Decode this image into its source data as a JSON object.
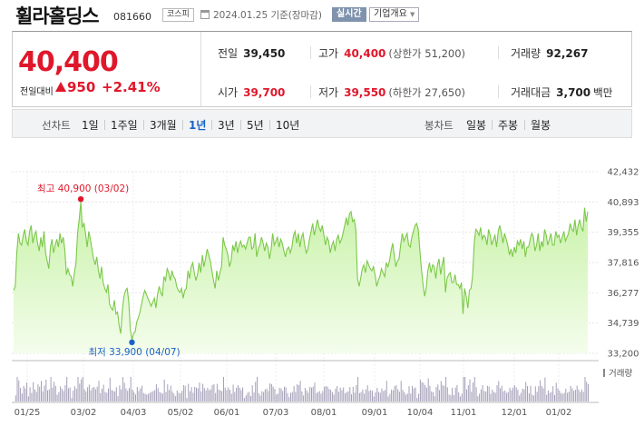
{
  "header": {
    "name": "휠라홀딩스",
    "code": "081660",
    "market": "코스피",
    "date_text": "2024.01.25  기준(장마감)",
    "realtime_label": "실시간",
    "company_label": "기업개요",
    "caret": "▼"
  },
  "price": {
    "current": "40,400",
    "prev_label": "전일대비",
    "diff": "950",
    "rate": "+2.41%"
  },
  "stats": {
    "prev": {
      "label": "전일",
      "value": "39,450"
    },
    "high": {
      "label": "고가",
      "value": "40,400",
      "sub": "(상한가 51,200)"
    },
    "volume": {
      "label": "거래량",
      "value": "92,267"
    },
    "open": {
      "label": "시가",
      "value": "39,700"
    },
    "low": {
      "label": "저가",
      "value": "39,550",
      "sub": "(하한가 27,650)"
    },
    "amount": {
      "label": "거래대금",
      "value": "3,700",
      "unit": "백만"
    }
  },
  "periods": {
    "title": "선차트",
    "options": [
      "1일",
      "1주일",
      "3개월",
      "1년",
      "3년",
      "5년",
      "10년"
    ],
    "active": "1년"
  },
  "candle": {
    "title": "봉차트",
    "options": [
      "일봉",
      "주봉",
      "월봉"
    ]
  },
  "colors": {
    "up": "#e0172b",
    "down": "#1a63c6",
    "line": "#7cc84a",
    "fill_top": "#c8f2a8",
    "fill_bottom": "#f4fdec"
  },
  "chart_data": {
    "type": "area",
    "ylim": [
      33200,
      42432
    ],
    "y_ticks": [
      "42,432",
      "40,893",
      "39,355",
      "37,816",
      "36,277",
      "34,739",
      "33,200"
    ],
    "x_ticks": [
      "01/25",
      "03/02",
      "04/03",
      "05/02",
      "06/01",
      "07/03",
      "08/01",
      "09/01",
      "10/04",
      "11/01",
      "12/01",
      "01/02"
    ],
    "series": [
      {
        "values": [
          36400,
          36600,
          38300,
          39300,
          38800,
          38700,
          39200,
          39500,
          38900,
          38700,
          39400,
          39700,
          38800,
          39200,
          39400,
          38800,
          38400,
          39100,
          38600,
          39400,
          38300,
          37900,
          37500,
          38600,
          39000,
          38300,
          38700,
          39000,
          38600,
          39300,
          38800,
          39100,
          38500,
          37200,
          37500,
          37200,
          37100,
          36600,
          37300,
          37800,
          39300,
          40000,
          40900,
          39600,
          39800,
          39300,
          38600,
          39400,
          39000,
          38500,
          38000,
          37700,
          38100,
          37400,
          37000,
          37600,
          36800,
          36500,
          36300,
          36700,
          35700,
          35500,
          35400,
          35900,
          35200,
          35300,
          34600,
          34200,
          35400,
          36100,
          36400,
          36500,
          35800,
          34400,
          33900,
          34200,
          34300,
          34800,
          35000,
          35300,
          35700,
          36100,
          36400,
          36200,
          36000,
          35800,
          35600,
          35800,
          36000,
          35500,
          36200,
          36600,
          36300,
          36100,
          37100,
          36900,
          37500,
          37300,
          36900,
          37400,
          37100,
          37000,
          36600,
          36400,
          36300,
          36500,
          36000,
          36400,
          36500,
          37400,
          37000,
          37600,
          37800,
          37300,
          36900,
          37200,
          37800,
          37300,
          38200,
          37600,
          38000,
          38500,
          38200,
          37900,
          37400,
          36900,
          36500,
          37400,
          36900,
          37300,
          37600,
          39100,
          38700,
          38500,
          38200,
          37600,
          37900,
          38700,
          38400,
          38900,
          38300,
          38700,
          38900,
          38600,
          38700,
          38500,
          38800,
          39100,
          39100,
          38500,
          38600,
          39300,
          38100,
          38500,
          38700,
          39100,
          38800,
          38400,
          38800,
          38600,
          38000,
          38500,
          39300,
          38700,
          38900,
          39100,
          38600,
          39000,
          38800,
          38400,
          38100,
          38500,
          38600,
          38300,
          38600,
          39200,
          39400,
          38800,
          39300,
          38600,
          39100,
          39300,
          38700,
          38300,
          38500,
          39000,
          39400,
          39800,
          39200,
          39600,
          40000,
          39600,
          39400,
          39700,
          39200,
          38700,
          39100,
          38900,
          38300,
          38700,
          38900,
          38400,
          39000,
          39200,
          38800,
          39000,
          39300,
          39700,
          40100,
          39700,
          40300,
          40400,
          39900,
          40000,
          39500,
          37000,
          36600,
          37000,
          37500,
          37700,
          37300,
          37900,
          37700,
          37500,
          37400,
          37600,
          37200,
          36600,
          36900,
          37100,
          37500,
          37300,
          37100,
          37800,
          37600,
          37900,
          38400,
          38800,
          38200,
          37600,
          37900,
          38000,
          38700,
          39300,
          38900,
          39100,
          39300,
          38700,
          38600,
          39100,
          39400,
          39700,
          39800,
          39500,
          38400,
          37500,
          36700,
          36100,
          36500,
          37400,
          37800,
          37300,
          37700,
          37600,
          37000,
          37700,
          38000,
          37200,
          37700,
          38100,
          36300,
          37000,
          37200,
          37300,
          36800,
          36800,
          37200,
          36700,
          36700,
          36500,
          36800,
          35200,
          36500,
          36100,
          35500,
          36400,
          36500,
          37100,
          38800,
          39500,
          39400,
          39200,
          39600,
          39000,
          39200,
          39100,
          38700,
          39500,
          39200,
          38700,
          39000,
          39200,
          38600,
          39400,
          39700,
          39300,
          38800,
          39300,
          39000,
          38700,
          38200,
          38500,
          38100,
          38600,
          38300,
          38900,
          38700,
          39000,
          38500,
          38900,
          38100,
          38600,
          38600,
          39000,
          39300,
          39100,
          38400,
          38700,
          39300,
          38400,
          38900,
          38600,
          39500,
          39200,
          38700,
          39000,
          39300,
          38700,
          38700,
          39400,
          39100,
          39200,
          38800,
          39100,
          39400,
          38900,
          39100,
          39300,
          39800,
          39500,
          39400,
          40000,
          39200,
          39700,
          40000,
          39600,
          39400,
          40600,
          39900,
          40400
        ]
      }
    ],
    "annotations": {
      "high": "최고 40,900 (03/02)",
      "low": "최저 33,900 (04/07)"
    },
    "volume_label": "거래량"
  }
}
